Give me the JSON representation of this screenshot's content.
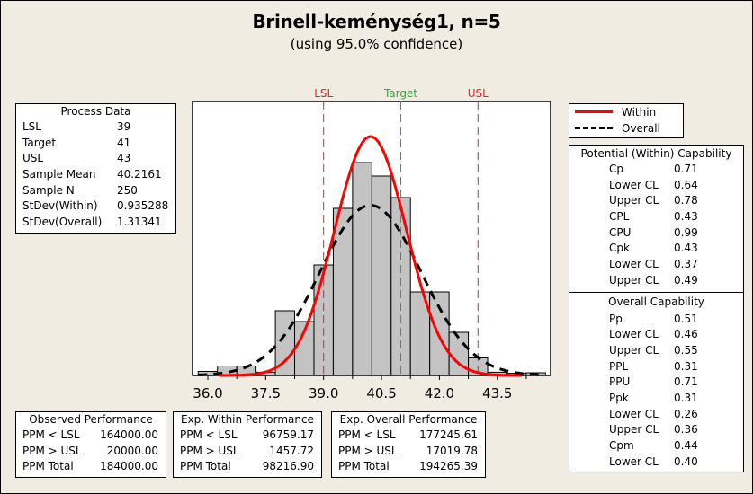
{
  "chart_data": {
    "type": "bar",
    "title": "Brinell-keménység1, n=5",
    "subtitle": "(using 95.0% confidence)",
    "xlabel": "",
    "ylabel": "",
    "xlim": [
      35.6,
      44.8
    ],
    "x_ticks": [
      "36.0",
      "37.5",
      "39.0",
      "40.5",
      "42.0",
      "43.5"
    ],
    "x_tick_values": [
      36.0,
      37.5,
      39.0,
      40.5,
      42.0,
      43.5
    ],
    "grid": false,
    "legend_position": "top-right",
    "histogram": {
      "bin_width": 0.5,
      "bin_starts": [
        35.75,
        36.25,
        36.75,
        37.25,
        37.75,
        38.25,
        38.75,
        39.25,
        39.75,
        40.25,
        40.75,
        41.25,
        41.75,
        42.25,
        42.75,
        43.25,
        43.75,
        44.25
      ],
      "relative_heights": [
        0.015,
        0.035,
        0.035,
        0.012,
        0.24,
        0.2,
        0.41,
        0.62,
        0.79,
        0.74,
        0.66,
        0.31,
        0.31,
        0.16,
        0.065,
        0.012,
        0.008,
        0.01
      ]
    },
    "spec_lines": [
      {
        "label": "LSL",
        "value": 39,
        "color": "#e8201f"
      },
      {
        "label": "Target",
        "value": 41,
        "color": "#2ea82e"
      },
      {
        "label": "USL",
        "value": 43,
        "color": "#e8201f"
      }
    ],
    "series": [
      {
        "name": "Within",
        "mean": 40.2161,
        "stdev": 0.935288,
        "color": "#ff0000",
        "style": "solid"
      },
      {
        "name": "Overall",
        "mean": 40.2161,
        "stdev": 1.31341,
        "color": "#000000",
        "style": "dashed"
      }
    ]
  },
  "process_data": {
    "title": "Process Data",
    "rows": [
      {
        "k": "LSL",
        "v": "39"
      },
      {
        "k": "Target",
        "v": "41"
      },
      {
        "k": "USL",
        "v": "43"
      },
      {
        "k": "Sample Mean",
        "v": "40.2161"
      },
      {
        "k": "Sample N",
        "v": "250"
      },
      {
        "k": "StDev(Within)",
        "v": "0.935288"
      },
      {
        "k": "StDev(Overall)",
        "v": "1.31341"
      }
    ]
  },
  "legend": {
    "within": "Within",
    "overall": "Overall"
  },
  "potential": {
    "title": "Potential (Within) Capability",
    "rows": [
      {
        "k": "Cp",
        "v": "0.71"
      },
      {
        "k": "Lower CL",
        "v": "0.64"
      },
      {
        "k": "Upper CL",
        "v": "0.78"
      },
      {
        "k": "CPL",
        "v": "0.43"
      },
      {
        "k": "CPU",
        "v": "0.99"
      },
      {
        "k": "Cpk",
        "v": "0.43"
      },
      {
        "k": "Lower CL",
        "v": "0.37"
      },
      {
        "k": "Upper CL",
        "v": "0.49"
      }
    ]
  },
  "overall": {
    "title": "Overall Capability",
    "rows": [
      {
        "k": "Pp",
        "v": "0.51"
      },
      {
        "k": "Lower CL",
        "v": "0.46"
      },
      {
        "k": "Upper CL",
        "v": "0.55"
      },
      {
        "k": "PPL",
        "v": "0.31"
      },
      {
        "k": "PPU",
        "v": "0.71"
      },
      {
        "k": "Ppk",
        "v": "0.31"
      },
      {
        "k": "Lower CL",
        "v": "0.26"
      },
      {
        "k": "Upper CL",
        "v": "0.36"
      },
      {
        "k": "Cpm",
        "v": "0.44"
      },
      {
        "k": "Lower CL",
        "v": "0.40"
      }
    ]
  },
  "observed": {
    "title": "Observed Performance",
    "rows": [
      {
        "k": "PPM < LSL",
        "v": "164000.00"
      },
      {
        "k": "PPM > USL",
        "v": "20000.00"
      },
      {
        "k": "PPM Total",
        "v": "184000.00"
      }
    ]
  },
  "exp_within": {
    "title": "Exp. Within Performance",
    "rows": [
      {
        "k": "PPM < LSL",
        "v": "96759.17"
      },
      {
        "k": "PPM > USL",
        "v": "1457.72"
      },
      {
        "k": "PPM Total",
        "v": "98216.90"
      }
    ]
  },
  "exp_overall": {
    "title": "Exp. Overall Performance",
    "rows": [
      {
        "k": "PPM < LSL",
        "v": "177245.61"
      },
      {
        "k": "PPM > USL",
        "v": "17019.78"
      },
      {
        "k": "PPM Total",
        "v": "194265.39"
      }
    ]
  }
}
